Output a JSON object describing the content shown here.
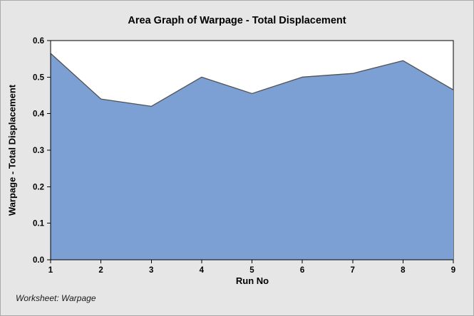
{
  "window": {
    "title": "Area Graph of Warpage - Total Displacement",
    "footnote": "Worksheet: Warpage"
  },
  "chart_data": {
    "type": "area",
    "title": "Area Graph of Warpage - Total Displacement",
    "xlabel": "Run No",
    "ylabel": "Warpage - Total Displacement",
    "x": [
      1,
      2,
      3,
      4,
      5,
      6,
      7,
      8,
      9
    ],
    "values": [
      0.565,
      0.44,
      0.42,
      0.5,
      0.455,
      0.5,
      0.51,
      0.545,
      0.465
    ],
    "series_name": "Warpage - Total Displacement",
    "xlim": [
      1,
      9
    ],
    "ylim": [
      0,
      0.6
    ],
    "x_tick_labels": [
      "1",
      "2",
      "3",
      "4",
      "5",
      "6",
      "7",
      "8",
      "9"
    ],
    "y_tick_labels": [
      "0.0",
      "0.1",
      "0.2",
      "0.3",
      "0.4",
      "0.5",
      "0.6"
    ],
    "grid": false,
    "legend": null,
    "colors": {
      "figure_bg": "#e6e6e6",
      "plot_bg": "#ffffff",
      "plot_border": "#000000",
      "area_fill": "#7ca0d4",
      "area_stroke": "#525252",
      "axis_text": "#000000"
    }
  }
}
